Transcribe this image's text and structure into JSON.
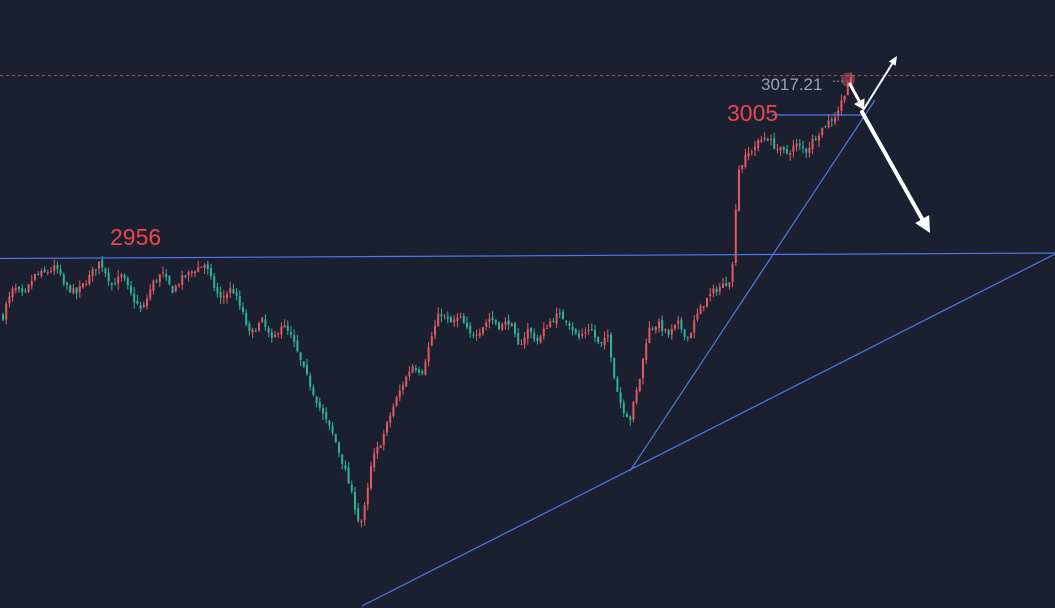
{
  "chart_data": {
    "type": "candlestick",
    "ylim": [
      2818,
      3030
    ],
    "current_price": 3017.21,
    "current_price_label": "3017.21",
    "current_price_suffix": "⋯",
    "colors": {
      "up": "#e05a5f",
      "down": "#2bb39b",
      "line": "#4f76e8",
      "background": "#1b2030",
      "price_line": "#b24e4e"
    },
    "annotations": [
      {
        "text": "2956",
        "value": 2956
      },
      {
        "text": "3005",
        "value": 3005
      }
    ],
    "horizontal_levels": [
      2956,
      3005
    ],
    "path": [
      [
        0,
        2933
      ],
      [
        6,
        2940
      ],
      [
        14,
        2946
      ],
      [
        24,
        2943
      ],
      [
        34,
        2950
      ],
      [
        45,
        2951
      ],
      [
        56,
        2953
      ],
      [
        64,
        2947
      ],
      [
        76,
        2944
      ],
      [
        88,
        2949
      ],
      [
        100,
        2955
      ],
      [
        112,
        2947
      ],
      [
        122,
        2950
      ],
      [
        132,
        2943
      ],
      [
        142,
        2938
      ],
      [
        152,
        2947
      ],
      [
        162,
        2951
      ],
      [
        172,
        2945
      ],
      [
        182,
        2949
      ],
      [
        194,
        2952
      ],
      [
        205,
        2954
      ],
      [
        212,
        2948
      ],
      [
        220,
        2942
      ],
      [
        232,
        2946
      ],
      [
        242,
        2938
      ],
      [
        250,
        2930
      ],
      [
        262,
        2935
      ],
      [
        272,
        2928
      ],
      [
        282,
        2934
      ],
      [
        292,
        2929
      ],
      [
        302,
        2920
      ],
      [
        312,
        2912
      ],
      [
        322,
        2904
      ],
      [
        334,
        2896
      ],
      [
        344,
        2886
      ],
      [
        354,
        2874
      ],
      [
        360,
        2866
      ],
      [
        366,
        2874
      ],
      [
        372,
        2888
      ],
      [
        382,
        2895
      ],
      [
        392,
        2905
      ],
      [
        402,
        2913
      ],
      [
        412,
        2920
      ],
      [
        422,
        2918
      ],
      [
        432,
        2930
      ],
      [
        440,
        2938
      ],
      [
        450,
        2934
      ],
      [
        460,
        2936
      ],
      [
        470,
        2930
      ],
      [
        480,
        2932
      ],
      [
        490,
        2936
      ],
      [
        500,
        2933
      ],
      [
        510,
        2935
      ],
      [
        518,
        2926
      ],
      [
        528,
        2932
      ],
      [
        538,
        2928
      ],
      [
        548,
        2934
      ],
      [
        558,
        2937
      ],
      [
        568,
        2935
      ],
      [
        578,
        2929
      ],
      [
        590,
        2933
      ],
      [
        600,
        2926
      ],
      [
        608,
        2930
      ],
      [
        616,
        2913
      ],
      [
        622,
        2906
      ],
      [
        630,
        2902
      ],
      [
        640,
        2916
      ],
      [
        648,
        2932
      ],
      [
        658,
        2934
      ],
      [
        668,
        2930
      ],
      [
        678,
        2934
      ],
      [
        688,
        2929
      ],
      [
        696,
        2936
      ],
      [
        704,
        2941
      ],
      [
        714,
        2945
      ],
      [
        724,
        2947
      ],
      [
        732,
        2950
      ],
      [
        738,
        2985
      ],
      [
        746,
        2990
      ],
      [
        756,
        2994
      ],
      [
        766,
        2997
      ],
      [
        776,
        2993
      ],
      [
        786,
        2991
      ],
      [
        796,
        2994
      ],
      [
        806,
        2992
      ],
      [
        816,
        2997
      ],
      [
        826,
        3001
      ],
      [
        836,
        3004
      ],
      [
        842,
        3009
      ],
      [
        848,
        3015
      ],
      [
        854,
        3016
      ]
    ]
  }
}
